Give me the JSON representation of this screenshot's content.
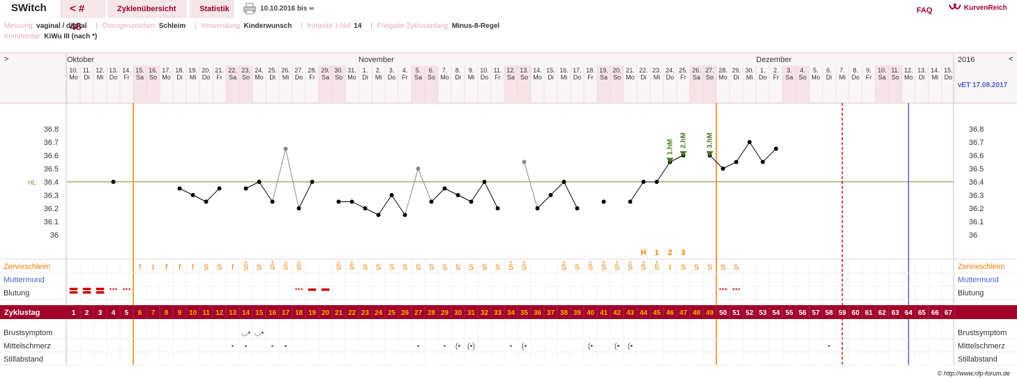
{
  "topbar": {
    "title": "SWitch",
    "cycle_button": "< # 48",
    "cycle_overview": "Zyklenübersicht",
    "statistics": "Statistik",
    "date_range": "10.10.2016 bis ∞",
    "faq": "FAQ",
    "brand": "KurvenReich"
  },
  "info": {
    "measurement_label": "Messung:",
    "measurement_value": "vaginal / digital",
    "estrogen_label": "Östrogenzeichen:",
    "estrogen_value": "Schleim",
    "usage_label": "Verwendung:",
    "usage_value": "Kinderwunsch",
    "earliest_label": "früheste 1.hM:",
    "earliest_value": "14",
    "release_label": "Freigabe Zyklusanfang:",
    "release_value": "Minus-8-Regel",
    "comment_label": "Kommentar:",
    "comment_value": "KiWu III (nach *)"
  },
  "header": {
    "left_arrow": ">",
    "right_arrow": "<",
    "months": [
      {
        "label": "Oktober",
        "day_index": 0
      },
      {
        "label": "November",
        "day_index": 22
      },
      {
        "label": "Dezember",
        "day_index": 52
      }
    ],
    "year": "2016",
    "due_date": "vET 17.08.2017"
  },
  "days": {
    "dates": [
      "10.",
      "11.",
      "12.",
      "13.",
      "14.",
      "15.",
      "16.",
      "17.",
      "18.",
      "19.",
      "20.",
      "21.",
      "22.",
      "23.",
      "24.",
      "25.",
      "26.",
      "27.",
      "28.",
      "29.",
      "30.",
      "31.",
      "1.",
      "2.",
      "3.",
      "4.",
      "5.",
      "6.",
      "7.",
      "8.",
      "9.",
      "10.",
      "11.",
      "12.",
      "13.",
      "14.",
      "15.",
      "16.",
      "17.",
      "18.",
      "19.",
      "20.",
      "21.",
      "22.",
      "23.",
      "24.",
      "25.",
      "26.",
      "27.",
      "28.",
      "29.",
      "30.",
      "1.",
      "2.",
      "3.",
      "4.",
      "5.",
      "6.",
      "7.",
      "8.",
      "9.",
      "10.",
      "11.",
      "12.",
      "13.",
      "14.",
      "15."
    ],
    "weekdays": [
      "Mo",
      "Di",
      "Mi",
      "Do",
      "Fr",
      "Sa",
      "So",
      "Mo",
      "Di",
      "Mi",
      "Do",
      "Fr",
      "Sa",
      "So",
      "Mo",
      "Di",
      "Mi",
      "Do",
      "Fr",
      "Sa",
      "So",
      "Mo",
      "Di",
      "Mi",
      "Do",
      "Fr",
      "Sa",
      "So",
      "Mo",
      "Di",
      "Mi",
      "Do",
      "Fr",
      "Sa",
      "So",
      "Mo",
      "Di",
      "Mi",
      "Do",
      "Fr",
      "Sa",
      "So",
      "Mo",
      "Di",
      "Mi",
      "Do",
      "Fr",
      "Sa",
      "So",
      "Mo",
      "Di",
      "Mi",
      "Do",
      "Fr",
      "Sa",
      "So",
      "Mo",
      "Di",
      "Mi",
      "Do",
      "Fr",
      "Sa",
      "So",
      "Mo",
      "Di",
      "Mi",
      "Do"
    ],
    "cycle_days": [
      "1",
      "2",
      "3",
      "4",
      "5",
      "6",
      "7",
      "8",
      "9",
      "10",
      "11",
      "12",
      "13",
      "14",
      "15",
      "16",
      "17",
      "18",
      "19",
      "20",
      "21",
      "22",
      "23",
      "24",
      "25",
      "26",
      "27",
      "28",
      "29",
      "30",
      "31",
      "32",
      "33",
      "34",
      "35",
      "36",
      "37",
      "38",
      "39",
      "40",
      "41",
      "42",
      "43",
      "44",
      "45",
      "46",
      "47",
      "48",
      "49",
      "50",
      "51",
      "52",
      "53",
      "54",
      "55",
      "56",
      "57",
      "58",
      "59",
      "60",
      "61",
      "62",
      "63",
      "64",
      "65",
      "66",
      "67"
    ]
  },
  "rows": {
    "cervix_label": "Zervixschleim",
    "mm_label": "Muttermund",
    "bleeding_label": "Blutung",
    "cycle_label": "Zyklustag",
    "breast_label": "Brustsymptom",
    "midpain_label": "Mittelschmerz",
    "breastfeeding_label": "Stillabstand"
  },
  "chart_data": {
    "type": "line",
    "ylim": [
      35.95,
      36.9
    ],
    "yticks": [
      "36.8",
      "36.7",
      "36.6",
      "36.5",
      "36.4",
      "36.3",
      "36.2",
      "36.1",
      "36"
    ],
    "hl_label": "HL",
    "hl_value": 36.4,
    "temperatures": [
      {
        "day": 4,
        "value": 36.4
      },
      {
        "day": 9,
        "value": 36.35
      },
      {
        "day": 10,
        "value": 36.3
      },
      {
        "day": 11,
        "value": 36.25
      },
      {
        "day": 12,
        "value": 36.35
      },
      {
        "day": 14,
        "value": 36.35
      },
      {
        "day": 15,
        "value": 36.4
      },
      {
        "day": 16,
        "value": 36.25
      },
      {
        "day": 17,
        "value": 36.65,
        "excluded": true
      },
      {
        "day": 18,
        "value": 36.2
      },
      {
        "day": 19,
        "value": 36.4
      },
      {
        "day": 21,
        "value": 36.25
      },
      {
        "day": 22,
        "value": 36.25
      },
      {
        "day": 23,
        "value": 36.2
      },
      {
        "day": 24,
        "value": 36.15
      },
      {
        "day": 25,
        "value": 36.3
      },
      {
        "day": 26,
        "value": 36.15
      },
      {
        "day": 27,
        "value": 36.5,
        "excluded": true
      },
      {
        "day": 28,
        "value": 36.25
      },
      {
        "day": 29,
        "value": 36.35
      },
      {
        "day": 30,
        "value": 36.3
      },
      {
        "day": 31,
        "value": 36.25
      },
      {
        "day": 32,
        "value": 36.4
      },
      {
        "day": 33,
        "value": 36.2
      },
      {
        "day": 35,
        "value": 36.55,
        "excluded": true
      },
      {
        "day": 36,
        "value": 36.2
      },
      {
        "day": 37,
        "value": 36.3
      },
      {
        "day": 38,
        "value": 36.4
      },
      {
        "day": 39,
        "value": 36.2
      },
      {
        "day": 41,
        "value": 36.25
      },
      {
        "day": 43,
        "value": 36.25
      },
      {
        "day": 44,
        "value": 36.4
      },
      {
        "day": 45,
        "value": 36.4
      },
      {
        "day": 46,
        "value": 36.55
      },
      {
        "day": 47,
        "value": 36.6
      },
      {
        "day": 49,
        "value": 36.6
      },
      {
        "day": 50,
        "value": 36.5
      },
      {
        "day": 51,
        "value": 36.55
      },
      {
        "day": 52,
        "value": 36.7
      },
      {
        "day": 53,
        "value": 36.55
      },
      {
        "day": 54,
        "value": 36.65
      }
    ],
    "high_measurements": [
      {
        "day": 46,
        "label": "1.hM"
      },
      {
        "day": 47,
        "label": "2.hM"
      },
      {
        "day": 49,
        "label": "3.hM"
      }
    ],
    "peak_markers": [
      {
        "day": 44,
        "label": "H"
      },
      {
        "day": 45,
        "label": "1"
      },
      {
        "day": 46,
        "label": "2"
      },
      {
        "day": 47,
        "label": "3"
      }
    ],
    "cervix": [
      "",
      "",
      "",
      "",
      "",
      "f",
      "t",
      "f",
      "f",
      "f",
      "S",
      "S",
      "f",
      "S+",
      "S",
      "S+",
      "S+",
      "S+",
      "",
      "",
      "S+",
      "S+",
      "S",
      "S",
      "S",
      "S",
      "S",
      "S",
      "S",
      "S",
      "S",
      "S",
      "S",
      "S+",
      "S+",
      "",
      "",
      "S+",
      "S",
      "S+",
      "S+",
      "S+",
      "S+",
      "S+",
      "S+",
      "t",
      "S",
      "S",
      "S",
      "S",
      "S"
    ],
    "bleeding": [
      "heavy",
      "heavy",
      "heavy",
      "light",
      "light",
      "",
      "",
      "",
      "",
      "",
      "",
      "",
      "",
      "",
      "",
      "",
      "",
      "light",
      "medium",
      "medium",
      "",
      "",
      "",
      "",
      "",
      "",
      "",
      "",
      "",
      "",
      "",
      "",
      "",
      "",
      "",
      "",
      "",
      "",
      "",
      "",
      "",
      "",
      "",
      "",
      "",
      "",
      "",
      "",
      "",
      "light",
      "light"
    ],
    "breast": [
      {
        "day": 14,
        "symbol": "◡•"
      },
      {
        "day": 15,
        "symbol": "◡•"
      }
    ],
    "midpain": [
      {
        "day": 13,
        "symbol": "•"
      },
      {
        "day": 14,
        "symbol": "•"
      },
      {
        "day": 16,
        "symbol": "•"
      },
      {
        "day": 17,
        "symbol": "•"
      },
      {
        "day": 27,
        "symbol": "•"
      },
      {
        "day": 29,
        "symbol": "•"
      },
      {
        "day": 30,
        "symbol": "(•"
      },
      {
        "day": 31,
        "symbol": "(•)"
      },
      {
        "day": 34,
        "symbol": "•"
      },
      {
        "day": 35,
        "symbol": "(•"
      },
      {
        "day": 40,
        "symbol": "(•"
      },
      {
        "day": 42,
        "symbol": "(•"
      },
      {
        "day": 43,
        "symbol": "(•"
      },
      {
        "day": 58,
        "symbol": "•"
      }
    ],
    "weekend_days": [
      6,
      7,
      13,
      14,
      20,
      21,
      27,
      28,
      34,
      35,
      41,
      42,
      48,
      49,
      55,
      56,
      62,
      63
    ],
    "markers": {
      "cycle_start_day": 6,
      "temp_shift_day": 49,
      "dashed_day": 58.5,
      "today_day": 63.5
    },
    "colors": {
      "accent": "#a0002a",
      "orange": "#f07d00",
      "line": "#000000",
      "hl": "#6b8e23",
      "excluded": "#888888",
      "blue": "#4a5fd0",
      "weekend": "#f6e3e8",
      "grid": "#dddddd",
      "hm": "#4c7a1e"
    }
  },
  "footer": "© http://www.nfp-forum.de"
}
